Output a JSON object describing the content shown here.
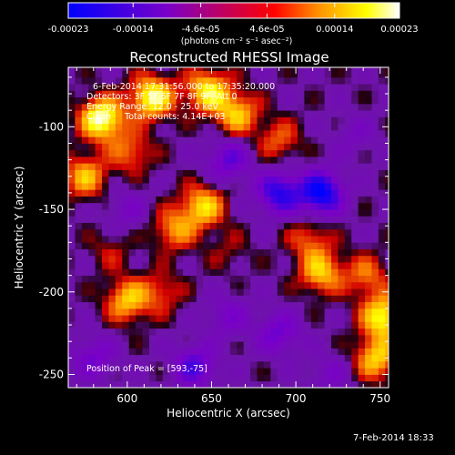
{
  "colorbar": {
    "ticks": [
      {
        "value": -0.00023,
        "label": "-0.00023"
      },
      {
        "value": -0.00014,
        "label": "-0.00014"
      },
      {
        "value": -4.6e-05,
        "label": "-4.6e-05"
      },
      {
        "value": 4.6e-05,
        "label": "4.6e-05"
      },
      {
        "value": 0.00014,
        "label": "0.00014"
      },
      {
        "value": 0.00023,
        "label": "0.00023"
      }
    ],
    "range": [
      -0.00023,
      0.00023
    ],
    "stops": [
      "#0000ff",
      "#7a00c8",
      "#ff0000",
      "#ff8c00",
      "#ffff00",
      "#ffffff"
    ]
  },
  "header": {
    "units_label": "(photons cm⁻² s⁻¹ asec⁻²)",
    "title": "Reconstructed RHESSI Image"
  },
  "info": {
    "time_range": "6-Feb-2014 17:31:56.000 to 17:35:20.000",
    "detectors": "Detectors: 3F 5F 6F 7F 8F 9F, Att 0",
    "energy": "Energy Range: 12.0 - 25.0 keV",
    "method": "Clean     Total counts: 4.14E+03",
    "peak": "Position of Peak = [593,-75]"
  },
  "footer": {
    "date": "7-Feb-2014 18:33"
  },
  "chart_data": {
    "type": "heatmap",
    "title": "Reconstructed RHESSI Image",
    "xlabel": "Heliocentric X (arcsec)",
    "ylabel": "Heliocentric Y (arcsec)",
    "xlim": [
      565,
      755
    ],
    "ylim": [
      -258,
      -64
    ],
    "xticks": [
      600,
      650,
      700,
      750
    ],
    "yticks": [
      -100,
      -150,
      -200,
      -250
    ],
    "grid": false,
    "resolution_arcsec": 4,
    "value_range": [
      -0.00023,
      0.00023
    ],
    "features": [
      {
        "x": 585,
        "y": -95,
        "value": 0.00023
      },
      {
        "x": 615,
        "y": -82,
        "value": 0.00021
      },
      {
        "x": 648,
        "y": -78,
        "value": 0.00018
      },
      {
        "x": 665,
        "y": -92,
        "value": 0.00015
      },
      {
        "x": 575,
        "y": -130,
        "value": 0.00014
      },
      {
        "x": 602,
        "y": -115,
        "value": 0.0001
      },
      {
        "x": 645,
        "y": -148,
        "value": 0.00016
      },
      {
        "x": 628,
        "y": -162,
        "value": 0.00012
      },
      {
        "x": 690,
        "y": -108,
        "value": 9e-05
      },
      {
        "x": 708,
        "y": -168,
        "value": 9e-05
      },
      {
        "x": 715,
        "y": -188,
        "value": 0.00015
      },
      {
        "x": 600,
        "y": -205,
        "value": 0.00015
      },
      {
        "x": 620,
        "y": -200,
        "value": 8e-05
      },
      {
        "x": 752,
        "y": -215,
        "value": 0.0002
      },
      {
        "x": 748,
        "y": -240,
        "value": 0.00016
      },
      {
        "x": 742,
        "y": -190,
        "value": 0.0001
      },
      {
        "x": 590,
        "y": -175,
        "value": 5e-05
      },
      {
        "x": 660,
        "y": -175,
        "value": 4e-05
      },
      {
        "x": 690,
        "y": -140,
        "value": -0.00018
      },
      {
        "x": 715,
        "y": -140,
        "value": -0.00023
      },
      {
        "x": 660,
        "y": -120,
        "value": -0.00012
      },
      {
        "x": 580,
        "y": -240,
        "value": -0.0001
      },
      {
        "x": 640,
        "y": -245,
        "value": -0.00014
      },
      {
        "x": 690,
        "y": -225,
        "value": -0.00011
      },
      {
        "x": 660,
        "y": -215,
        "value": -8e-05
      },
      {
        "x": 600,
        "y": -150,
        "value": -6e-05
      },
      {
        "x": 720,
        "y": -250,
        "value": -6e-05
      },
      {
        "x": 735,
        "y": -105,
        "value": -5e-05
      }
    ]
  }
}
